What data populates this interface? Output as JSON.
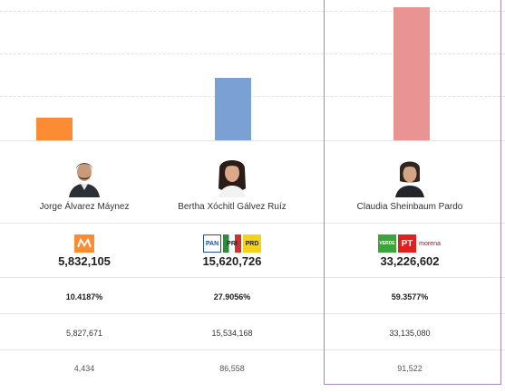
{
  "chart_data": {
    "type": "bar",
    "categories": [
      "Jorge Álvarez Máynez",
      "Bertha Xóchitl Gálvez Ruíz",
      "Claudia Sheinbaum Pardo"
    ],
    "values": [
      5832105,
      15620726,
      33226602
    ],
    "ylim": [
      0,
      35000000
    ],
    "grid": true,
    "colors": [
      "#fb8c34",
      "#7aa0d4",
      "#e99393"
    ]
  },
  "candidates": [
    {
      "name": "Jorge Álvarez Máynez",
      "parties": [
        {
          "label": "MC",
          "color": "#fb8c34",
          "text_color": "#ffffff"
        }
      ],
      "votes": "5,832,105",
      "percent": "10.4187%",
      "counted": "5,827,671",
      "other": "4,434"
    },
    {
      "name": "Bertha Xóchitl Gálvez Ruíz",
      "parties": [
        {
          "label": "PAN",
          "color": "#1f4fa0",
          "text_color": "#ffffff"
        },
        {
          "label": "PRI",
          "color": "#d32f2f",
          "text_color": "#ffffff"
        },
        {
          "label": "PRD",
          "color": "#f4d21a",
          "text_color": "#222222"
        }
      ],
      "votes": "15,620,726",
      "percent": "27.9056%",
      "counted": "15,534,168",
      "other": "86,558"
    },
    {
      "name": "Claudia Sheinbaum Pardo",
      "parties": [
        {
          "label": "VERDE",
          "color": "#3aa63a",
          "text_color": "#ffffff"
        },
        {
          "label": "PT",
          "color": "#e02020",
          "text_color": "#ffffff"
        },
        {
          "label": "morena",
          "color": "#ffffff",
          "text_color": "#8a1a2a"
        }
      ],
      "votes": "33,226,602",
      "percent": "59.3577%",
      "counted": "33,135,080",
      "other": "91,522"
    }
  ]
}
